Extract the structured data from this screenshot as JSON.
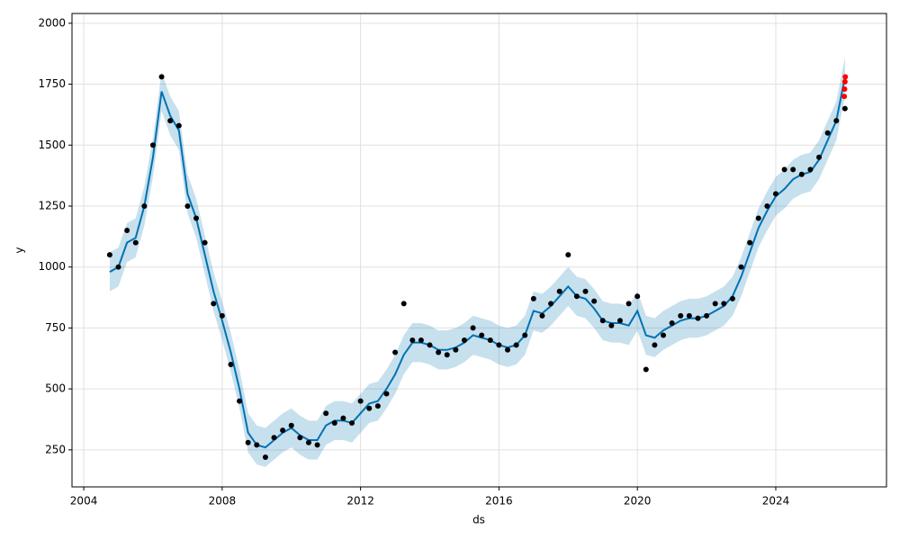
{
  "chart_data": {
    "type": "forecast",
    "xlabel": "ds",
    "ylabel": "y",
    "xlim": [
      2003.66,
      2027.2
    ],
    "ylim": [
      98,
      2040
    ],
    "xticks": [
      2004,
      2008,
      2012,
      2016,
      2020,
      2024
    ],
    "yticks": [
      250,
      500,
      750,
      1000,
      1250,
      1500,
      1750,
      2000
    ],
    "grid": true,
    "x": [
      2004.75,
      2005,
      2005.25,
      2005.5,
      2005.75,
      2006,
      2006.25,
      2006.5,
      2006.75,
      2007,
      2007.25,
      2007.5,
      2007.75,
      2008,
      2008.25,
      2008.5,
      2008.75,
      2009,
      2009.25,
      2009.5,
      2009.75,
      2010,
      2010.25,
      2010.5,
      2010.75,
      2011,
      2011.25,
      2011.5,
      2011.75,
      2012,
      2012.25,
      2012.5,
      2012.75,
      2013,
      2013.25,
      2013.5,
      2013.75,
      2014,
      2014.25,
      2014.5,
      2014.75,
      2015,
      2015.25,
      2015.5,
      2015.75,
      2016,
      2016.25,
      2016.5,
      2016.75,
      2017,
      2017.25,
      2017.5,
      2017.75,
      2018,
      2018.25,
      2018.5,
      2018.75,
      2019,
      2019.25,
      2019.5,
      2019.75,
      2020,
      2020.25,
      2020.5,
      2020.75,
      2021,
      2021.25,
      2021.5,
      2021.75,
      2022,
      2022.25,
      2022.5,
      2022.75,
      2023,
      2023.25,
      2023.5,
      2023.75,
      2024,
      2024.25,
      2024.5,
      2024.75,
      2025,
      2025.25,
      2025.5,
      2025.75,
      2026
    ],
    "series": [
      {
        "type": "band",
        "color": "#0072B2",
        "lower": [
          900,
          920,
          1020,
          1040,
          1170,
          1370,
          1640,
          1540,
          1480,
          1220,
          1120,
          970,
          820,
          700,
          570,
          420,
          240,
          190,
          180,
          210,
          240,
          260,
          230,
          210,
          210,
          270,
          290,
          290,
          280,
          320,
          360,
          370,
          420,
          480,
          560,
          610,
          610,
          600,
          580,
          580,
          590,
          610,
          640,
          630,
          620,
          600,
          590,
          600,
          640,
          740,
          730,
          760,
          800,
          840,
          800,
          790,
          750,
          700,
          690,
          690,
          680,
          740,
          640,
          630,
          660,
          680,
          700,
          710,
          710,
          720,
          740,
          760,
          800,
          880,
          980,
          1080,
          1150,
          1210,
          1240,
          1280,
          1300,
          1310,
          1360,
          1440,
          1520,
          1700
        ],
        "upper": [
          1060,
          1080,
          1180,
          1200,
          1330,
          1530,
          1800,
          1700,
          1640,
          1380,
          1280,
          1130,
          980,
          860,
          730,
          580,
          400,
          350,
          340,
          370,
          400,
          420,
          390,
          370,
          370,
          430,
          450,
          450,
          440,
          480,
          520,
          530,
          580,
          640,
          720,
          770,
          770,
          760,
          740,
          740,
          750,
          770,
          800,
          790,
          780,
          760,
          750,
          760,
          800,
          900,
          890,
          920,
          960,
          1000,
          960,
          950,
          910,
          860,
          850,
          850,
          840,
          900,
          800,
          790,
          820,
          840,
          860,
          870,
          870,
          880,
          900,
          920,
          960,
          1040,
          1140,
          1240,
          1310,
          1370,
          1400,
          1440,
          1460,
          1470,
          1520,
          1600,
          1680,
          1860
        ]
      },
      {
        "type": "line",
        "color": "#0072B2",
        "values": [
          980,
          1000,
          1100,
          1120,
          1250,
          1450,
          1720,
          1620,
          1560,
          1300,
          1200,
          1050,
          900,
          780,
          650,
          500,
          320,
          270,
          260,
          290,
          320,
          340,
          310,
          290,
          290,
          350,
          370,
          370,
          360,
          400,
          440,
          450,
          500,
          560,
          640,
          690,
          690,
          680,
          660,
          660,
          670,
          690,
          720,
          710,
          700,
          680,
          670,
          680,
          720,
          820,
          810,
          840,
          880,
          920,
          880,
          870,
          830,
          780,
          770,
          770,
          760,
          820,
          720,
          710,
          740,
          760,
          780,
          790,
          790,
          800,
          820,
          840,
          880,
          960,
          1060,
          1160,
          1230,
          1290,
          1320,
          1360,
          1380,
          1390,
          1440,
          1520,
          1600,
          1780
        ]
      },
      {
        "type": "scatter",
        "color": "#000000",
        "values": [
          1050,
          1000,
          1150,
          1100,
          1250,
          1500,
          1780,
          1600,
          1580,
          1250,
          1200,
          1100,
          850,
          800,
          600,
          450,
          280,
          270,
          220,
          300,
          330,
          350,
          300,
          280,
          270,
          400,
          360,
          380,
          360,
          450,
          420,
          430,
          480,
          650,
          850,
          700,
          700,
          680,
          650,
          640,
          660,
          700,
          750,
          720,
          700,
          680,
          660,
          680,
          720,
          870,
          800,
          850,
          900,
          1050,
          880,
          900,
          860,
          780,
          760,
          780,
          850,
          880,
          580,
          680,
          720,
          770,
          800,
          800,
          790,
          800,
          850,
          850,
          870,
          1000,
          1100,
          1200,
          1250,
          1300,
          1400,
          1400,
          1380,
          1400,
          1450,
          1550,
          1600,
          1650
        ]
      },
      {
        "type": "scatter",
        "color": "#ff0000",
        "x": [
          2025.98,
          2025.99,
          2026.0,
          2026.01
        ],
        "values": [
          1700,
          1730,
          1760,
          1780
        ]
      }
    ]
  }
}
